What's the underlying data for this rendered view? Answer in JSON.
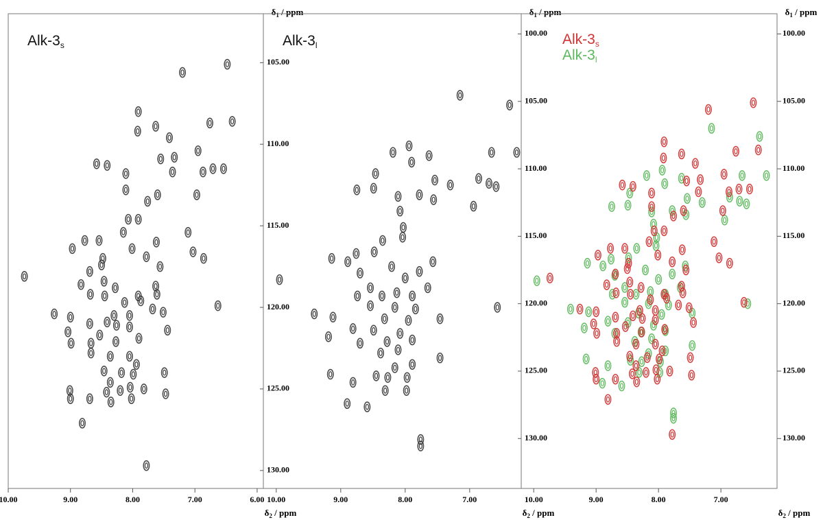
{
  "chart_data": [
    {
      "type": "scatter",
      "legend": false,
      "ytick_sides": [],
      "x_label": {
        "symbol": "δ",
        "sub": "2",
        "unit": " / ppm"
      },
      "y_label": {
        "symbol": "δ",
        "sub": "1",
        "unit": " / ppm"
      },
      "xlim": [
        10.0,
        5.9
      ],
      "ylim": [
        102.0,
        131.1
      ],
      "xticks": [
        {
          "value": 10,
          "label": "10.00"
        },
        {
          "value": 9,
          "label": "9.00"
        },
        {
          "value": 8,
          "label": "8.00"
        },
        {
          "value": 7,
          "label": "7.00"
        },
        {
          "value": 6,
          "label": "6.00"
        }
      ],
      "series": [
        {
          "name": "Alk-3",
          "name_sub": "s",
          "color": "#3a3a3a",
          "x": [
            9.74,
            7.2,
            6.48,
            7.91,
            7.63,
            7.92,
            6.76,
            6.4,
            7.41,
            8.58,
            8.41,
            8.11,
            7.55,
            7.33,
            6.95,
            7.36,
            6.87,
            6.71,
            6.54,
            8.11,
            7.6,
            7.76,
            7.91,
            8.07,
            6.97,
            8.15,
            7.11,
            8.77,
            8.54,
            8.97,
            8.01,
            7.62,
            7.03,
            6.86,
            8.48,
            8.5,
            7.78,
            7.56,
            8.69,
            8.46,
            8.83,
            8.28,
            7.91,
            7.63,
            7.61,
            8.68,
            8.45,
            8.13,
            7.87,
            7.68,
            9.26,
            9.0,
            8.3,
            8.05,
            7.51,
            6.63,
            8.69,
            8.41,
            8.26,
            8.05,
            7.9,
            9.04,
            8.53,
            7.44,
            8.67,
            8.27,
            8.99,
            8.36,
            8.05,
            7.94,
            8.67,
            8.18,
            7.99,
            8.46,
            7.49,
            8.36,
            9.01,
            8.42,
            8.2,
            8.04,
            7.82,
            8.69,
            8.35,
            8.02,
            7.47,
            9.0,
            8.81,
            7.78
          ],
          "y": [
            118.1,
            105.6,
            105.1,
            108.0,
            108.9,
            109.2,
            108.7,
            108.6,
            109.6,
            111.2,
            111.3,
            111.8,
            110.9,
            110.8,
            110.4,
            111.7,
            111.7,
            111.5,
            111.5,
            112.8,
            113.1,
            113.5,
            114.6,
            114.6,
            113.1,
            115.4,
            115.4,
            115.9,
            115.9,
            116.4,
            116.4,
            116.0,
            116.6,
            117.0,
            117.0,
            117.4,
            116.9,
            117.5,
            117.8,
            118.4,
            118.6,
            118.8,
            119.3,
            118.7,
            119.2,
            119.2,
            119.3,
            119.7,
            119.6,
            120.1,
            120.4,
            120.6,
            120.5,
            120.5,
            120.3,
            119.9,
            121.0,
            120.9,
            121.1,
            121.2,
            121.9,
            121.5,
            121.7,
            121.4,
            122.2,
            122.1,
            122.2,
            123.0,
            123.0,
            123.5,
            122.8,
            124.0,
            124.1,
            123.9,
            124.0,
            124.6,
            125.1,
            125.2,
            125.1,
            124.9,
            125.0,
            125.6,
            125.8,
            125.6,
            125.3,
            125.6,
            127.1,
            129.7
          ]
        }
      ]
    },
    {
      "type": "scatter",
      "legend": false,
      "ytick_sides": [
        "left"
      ],
      "x_label": {
        "symbol": "δ",
        "sub": "2",
        "unit": " / ppm"
      },
      "y_label": {
        "symbol": "δ",
        "sub": "1",
        "unit": " / ppm"
      },
      "xlim": [
        10.2,
        6.2
      ],
      "ylim": [
        102.0,
        131.1
      ],
      "xticks": [
        {
          "value": 10,
          "label": "10.00"
        },
        {
          "value": 9,
          "label": "9.00"
        },
        {
          "value": 8,
          "label": "8.00"
        },
        {
          "value": 7,
          "label": "7.00"
        }
      ],
      "yticks": [
        {
          "value": 105,
          "label": "105.00"
        },
        {
          "value": 110,
          "label": "110.00"
        },
        {
          "value": 115,
          "label": "115.00"
        },
        {
          "value": 120,
          "label": "120.00"
        },
        {
          "value": 125,
          "label": "125.00"
        },
        {
          "value": 130,
          "label": "130.00"
        }
      ],
      "series": [
        {
          "name": "Alk-3",
          "name_sub": "l",
          "color": "#3a3a3a",
          "x": [
            6.38,
            7.15,
            7.94,
            8.19,
            7.63,
            6.66,
            6.27,
            7.9,
            8.46,
            8.75,
            8.49,
            7.54,
            7.3,
            6.86,
            6.7,
            6.59,
            8.11,
            7.78,
            7.56,
            6.94,
            8.08,
            8.03,
            8.04,
            8.35,
            8.76,
            8.48,
            9.14,
            8.89,
            7.57,
            9.95,
            8.7,
            8.21,
            8.0,
            7.78,
            8.54,
            8.36,
            8.13,
            7.89,
            7.65,
            8.74,
            8.54,
            8.16,
            7.84,
            9.41,
            9.12,
            8.32,
            7.95,
            7.46,
            6.57,
            8.81,
            8.49,
            8.08,
            9.19,
            8.28,
            7.89,
            8.7,
            8.11,
            8.38,
            7.89,
            8.16,
            8.45,
            8.27,
            7.97,
            9.16,
            7.46,
            8.81,
            8.31,
            7.98,
            8.9,
            8.59,
            7.76,
            7.76
          ],
          "y": [
            107.6,
            107.0,
            110.1,
            110.5,
            110.7,
            110.5,
            110.5,
            111.1,
            111.8,
            112.8,
            112.7,
            112.2,
            112.5,
            112.1,
            112.4,
            112.6,
            113.2,
            113.1,
            113.4,
            113.8,
            114.1,
            115.1,
            115.7,
            115.9,
            116.7,
            116.6,
            117.0,
            117.2,
            117.2,
            118.3,
            117.9,
            117.5,
            118.2,
            117.8,
            118.8,
            119.3,
            119.1,
            119.3,
            118.8,
            119.3,
            119.9,
            120.0,
            120.1,
            120.4,
            120.6,
            120.7,
            120.8,
            120.7,
            120.0,
            121.3,
            121.4,
            121.6,
            121.8,
            122.1,
            122.0,
            122.2,
            122.6,
            122.8,
            123.5,
            123.7,
            124.2,
            124.3,
            124.3,
            124.1,
            123.1,
            124.6,
            125.1,
            125.1,
            125.9,
            126.1,
            128.1,
            128.5
          ]
        }
      ]
    },
    {
      "type": "scatter",
      "legend": true,
      "ytick_sides": [
        "left",
        "right"
      ],
      "x_label": {
        "symbol": "δ",
        "sub": "2",
        "unit": " / ppm"
      },
      "y_label": {
        "symbol": "δ",
        "sub": "1",
        "unit": " / ppm"
      },
      "xlim": [
        10.2,
        6.1
      ],
      "ylim": [
        98.5,
        133.7
      ],
      "xticks": [
        {
          "value": 10,
          "label": "10.00"
        },
        {
          "value": 9,
          "label": "9.00"
        },
        {
          "value": 8,
          "label": "8.00"
        },
        {
          "value": 7,
          "label": "7.00"
        }
      ],
      "yticks": [
        {
          "value": 100,
          "label": "100.00"
        },
        {
          "value": 105,
          "label": "105.00"
        },
        {
          "value": 110,
          "label": "110.00"
        },
        {
          "value": 115,
          "label": "115.00"
        },
        {
          "value": 120,
          "label": "120.00"
        },
        {
          "value": 125,
          "label": "125.00"
        },
        {
          "value": 130,
          "label": "130.00"
        }
      ],
      "series": [
        {
          "name": "Alk-3",
          "name_sub": "l",
          "color": "#5cb85c",
          "x": [
            6.38,
            7.15,
            7.94,
            8.19,
            7.63,
            6.66,
            6.27,
            7.9,
            8.46,
            8.75,
            8.49,
            7.54,
            7.3,
            6.86,
            6.7,
            6.59,
            8.11,
            7.78,
            7.56,
            6.94,
            8.08,
            8.03,
            8.04,
            8.35,
            8.76,
            8.48,
            9.14,
            8.89,
            7.57,
            9.95,
            8.7,
            8.21,
            8.0,
            7.78,
            8.54,
            8.36,
            8.13,
            7.89,
            7.65,
            8.74,
            8.54,
            8.16,
            7.84,
            9.41,
            9.12,
            8.32,
            7.95,
            7.46,
            6.57,
            8.81,
            8.49,
            8.08,
            9.19,
            8.28,
            7.89,
            8.7,
            8.11,
            8.38,
            7.89,
            8.16,
            8.45,
            8.27,
            7.97,
            9.16,
            7.46,
            8.81,
            8.31,
            7.98,
            8.9,
            8.59,
            7.76,
            7.76
          ],
          "y": [
            107.6,
            107.0,
            110.1,
            110.5,
            110.7,
            110.5,
            110.5,
            111.1,
            111.8,
            112.8,
            112.7,
            112.2,
            112.5,
            112.1,
            112.4,
            112.6,
            113.2,
            113.1,
            113.4,
            113.8,
            114.1,
            115.1,
            115.7,
            115.9,
            116.7,
            116.6,
            117.0,
            117.2,
            117.2,
            118.3,
            117.9,
            117.5,
            118.2,
            117.8,
            118.8,
            119.3,
            119.1,
            119.3,
            118.8,
            119.3,
            119.9,
            120.0,
            120.1,
            120.4,
            120.6,
            120.7,
            120.8,
            120.7,
            120.0,
            121.3,
            121.4,
            121.6,
            121.8,
            122.1,
            122.0,
            122.2,
            122.6,
            122.8,
            123.5,
            123.7,
            124.2,
            124.3,
            124.3,
            124.1,
            123.1,
            124.6,
            125.1,
            125.1,
            125.9,
            126.1,
            128.1,
            128.5
          ]
        },
        {
          "name": "Alk-3",
          "name_sub": "s",
          "color": "#d03232",
          "x": [
            9.74,
            7.2,
            6.48,
            7.91,
            7.63,
            7.92,
            6.76,
            6.4,
            7.41,
            8.58,
            8.41,
            8.11,
            7.55,
            7.33,
            6.95,
            7.36,
            6.87,
            6.71,
            6.54,
            8.11,
            7.6,
            7.76,
            7.91,
            8.07,
            6.97,
            8.15,
            7.11,
            8.77,
            8.54,
            8.97,
            8.01,
            7.62,
            7.03,
            6.86,
            8.48,
            8.5,
            7.78,
            7.56,
            8.69,
            8.46,
            8.83,
            8.28,
            7.91,
            7.63,
            7.61,
            8.68,
            8.45,
            8.13,
            7.87,
            7.68,
            9.26,
            9.0,
            8.3,
            8.05,
            7.51,
            6.63,
            8.69,
            8.41,
            8.26,
            8.05,
            7.9,
            9.04,
            8.53,
            7.44,
            8.67,
            8.27,
            8.99,
            8.36,
            8.05,
            7.94,
            8.67,
            8.18,
            7.99,
            8.46,
            7.49,
            8.36,
            9.01,
            8.42,
            8.2,
            8.04,
            7.82,
            8.69,
            8.35,
            8.02,
            7.47,
            9.0,
            8.81,
            7.78
          ],
          "y": [
            118.1,
            105.6,
            105.1,
            108.0,
            108.9,
            109.2,
            108.7,
            108.6,
            109.6,
            111.2,
            111.3,
            111.8,
            110.9,
            110.8,
            110.4,
            111.7,
            111.7,
            111.5,
            111.5,
            112.8,
            113.1,
            113.5,
            114.6,
            114.6,
            113.1,
            115.4,
            115.4,
            115.9,
            115.9,
            116.4,
            116.4,
            116.0,
            116.6,
            117.0,
            117.0,
            117.4,
            116.9,
            117.5,
            117.8,
            118.4,
            118.6,
            118.8,
            119.3,
            118.7,
            119.2,
            119.2,
            119.3,
            119.7,
            119.6,
            120.1,
            120.4,
            120.6,
            120.5,
            120.5,
            120.3,
            119.9,
            121.0,
            120.9,
            121.1,
            121.2,
            121.9,
            121.5,
            121.7,
            121.4,
            122.2,
            122.1,
            122.2,
            123.0,
            123.0,
            123.5,
            122.8,
            124.0,
            124.1,
            123.9,
            124.0,
            124.6,
            125.1,
            125.2,
            125.1,
            124.9,
            125.0,
            125.6,
            125.8,
            125.6,
            125.3,
            125.6,
            127.1,
            129.7
          ]
        }
      ]
    }
  ]
}
